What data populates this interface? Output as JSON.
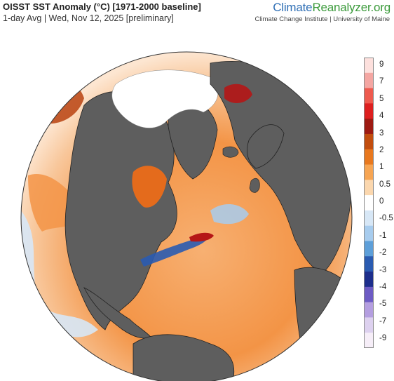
{
  "header": {
    "title": "OISST SST Anomaly (°C) [1971-2000 baseline]",
    "subtitle": "1-day Avg | Wed, Nov 12, 2025 [preliminary]"
  },
  "brand": {
    "part1": "Climate",
    "part2": "Reanalyzer",
    "part3": ".org",
    "institute": "Climate Change Institute | University of Maine",
    "colors": {
      "climate": "#2f6fb5",
      "reanalyzer": "#3a9a3a"
    }
  },
  "map": {
    "projection": "orthographic",
    "land_color": "#5e5e5e",
    "sea_ice_color": "#ffffff",
    "border_color": "#222222"
  },
  "legend": {
    "labels": [
      "9",
      "7",
      "5",
      "4",
      "3",
      "2",
      "1",
      "0.5",
      "0",
      "-0.5",
      "-1",
      "-2",
      "-3",
      "-4",
      "-5",
      "-7",
      "-9"
    ],
    "colors": [
      "#fde0dd",
      "#f4a6a2",
      "#ee5a4e",
      "#dd1f1f",
      "#9e1a12",
      "#c24d0e",
      "#e8781e",
      "#f7a552",
      "#fbd7ae",
      "#ffffff",
      "#d7e7f6",
      "#a7ccee",
      "#5d9fd9",
      "#2a5bb1",
      "#1d2e8c",
      "#6d5bc4",
      "#b49ee0",
      "#ddd1ef",
      "#f6eef8"
    ]
  }
}
